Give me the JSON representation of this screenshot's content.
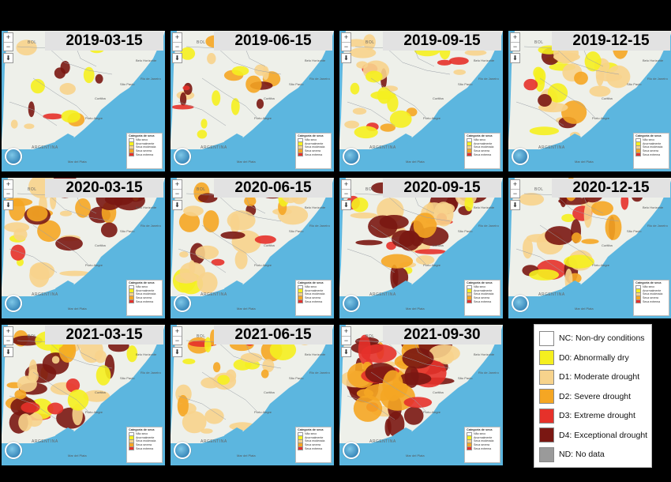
{
  "colors": {
    "NC": "#ffffff",
    "D0": "#f5ef1f",
    "D1": "#f7d38c",
    "D2": "#f5a623",
    "D3": "#e6312a",
    "D4": "#7a1712",
    "ND": "#9a9a9a",
    "ocean": "#5cb6df",
    "land": "#eef0ea"
  },
  "panels": [
    {
      "date": "2019-03-15",
      "level": 0.15
    },
    {
      "date": "2019-06-15",
      "level": 0.2
    },
    {
      "date": "2019-09-15",
      "level": 0.35
    },
    {
      "date": "2019-12-15",
      "level": 0.5
    },
    {
      "date": "2020-03-15",
      "level": 0.55
    },
    {
      "date": "2020-06-15",
      "level": 0.55
    },
    {
      "date": "2020-09-15",
      "level": 0.65
    },
    {
      "date": "2020-12-15",
      "level": 0.7
    },
    {
      "date": "2021-03-15",
      "level": 0.6
    },
    {
      "date": "2021-06-15",
      "level": 0.45
    },
    {
      "date": "2021-09-30",
      "level": 0.9
    }
  ],
  "mini_legend": {
    "title": "Categoria de seca",
    "items": [
      "Não seco",
      "Anormalmente",
      "Seca moderada",
      "Seca severa",
      "Seca extrema"
    ]
  },
  "places": {
    "argentina": "ARGENTINA",
    "bolivia": "BOL",
    "mar_del_plata": "Mar del Plata",
    "porto_alegre": "Porto Alegre",
    "curitiba": "Curitiba",
    "belo_horizonte": "Belo Horizonte",
    "rio": "Rio de Janeiro",
    "sao_paulo": "São Paulo"
  },
  "legend": [
    {
      "code": "NC",
      "label": "NC: Non-dry conditions"
    },
    {
      "code": "D0",
      "label": "D0: Abnormally dry"
    },
    {
      "code": "D1",
      "label": "D1: Moderate drought"
    },
    {
      "code": "D2",
      "label": "D2: Severe drought"
    },
    {
      "code": "D3",
      "label": "D3: Extreme drought"
    },
    {
      "code": "D4",
      "label": "D4: Exceptional drought"
    },
    {
      "code": "ND",
      "label": "ND: No data"
    }
  ]
}
